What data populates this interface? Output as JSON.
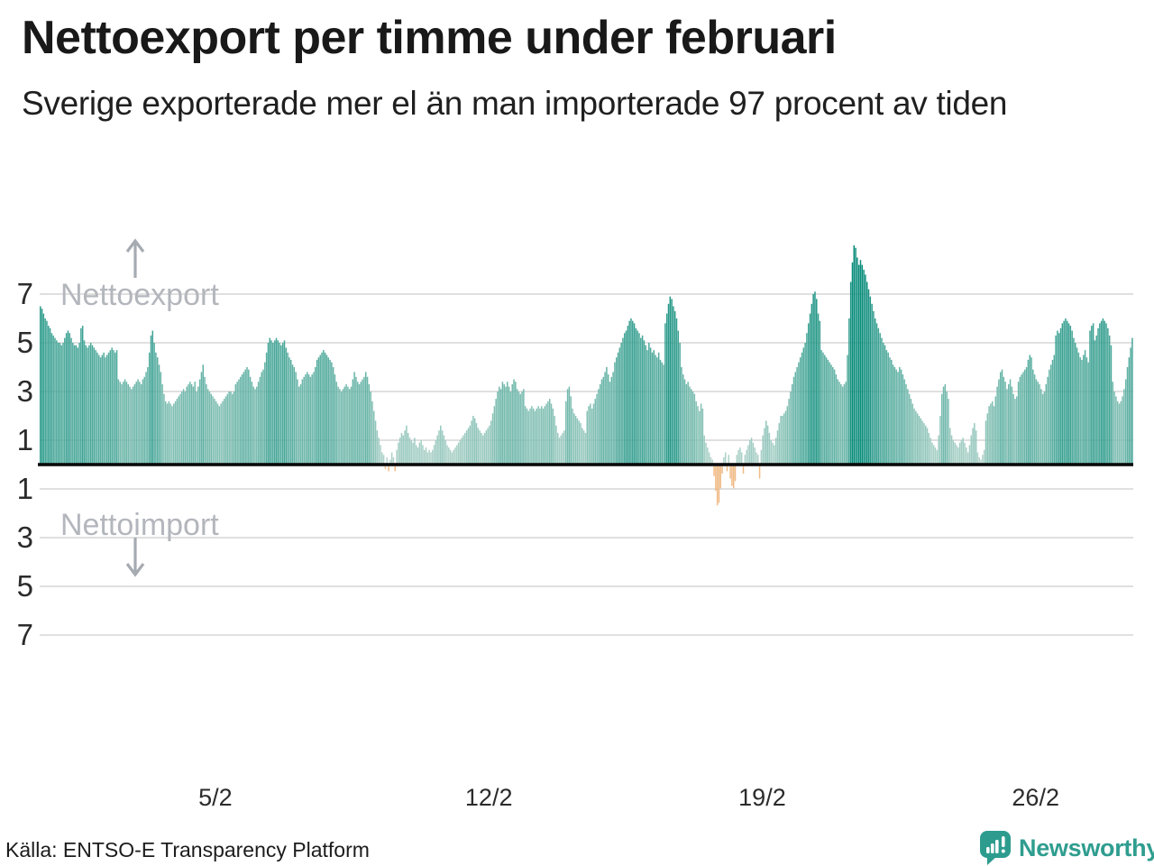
{
  "title": "Nettoexport per timme under februari",
  "subtitle": "Sverige exporterade mer el än man importerade 97 procent av tiden",
  "annotations": {
    "export_label": "Nettoexport",
    "import_label": "Nettoimport"
  },
  "footer": {
    "source": "Källa: ENTSO-E Transparency Platform"
  },
  "brand": {
    "name": "Newsworthy"
  },
  "colors": {
    "positive_low": "#b7d6cd",
    "positive_high": "#0a8c7b",
    "negative": "#f0ba85",
    "gridline": "#d9d9d9",
    "baseline": "#0a0a0a",
    "annotation_gray": "#b3b6bc",
    "arrow_gray": "#a6abb2",
    "brand_teal": "#2d9c8e"
  },
  "chart_data": {
    "type": "bar",
    "title": "Nettoexport per timme under februari",
    "x_unit": "hour",
    "days": 28,
    "hours_per_day": 24,
    "xlabel": "",
    "ylabel": "",
    "ylim": [
      -9,
      9
    ],
    "gridline_values": [
      7,
      5,
      3,
      1,
      -1,
      -3,
      -5,
      -7
    ],
    "y_tick_labels": [
      "7",
      "5",
      "3",
      "1",
      "1",
      "3",
      "5",
      "7"
    ],
    "x_tick_labels": [
      "5/2",
      "12/2",
      "19/2",
      "26/2"
    ],
    "x_tick_days": [
      5,
      12,
      19,
      26
    ],
    "legend": [
      "Nettoexport",
      "Nettoimport"
    ],
    "values": [
      6.5,
      6.4,
      6.2,
      6.0,
      5.9,
      5.7,
      5.6,
      5.4,
      5.3,
      5.2,
      5.1,
      5.0,
      5.0,
      4.9,
      5.0,
      5.2,
      5.4,
      5.5,
      5.4,
      5.2,
      5.0,
      4.9,
      4.9,
      4.8,
      5.0,
      5.6,
      5.7,
      5.1,
      4.9,
      4.8,
      4.9,
      5.0,
      4.9,
      4.8,
      4.7,
      4.6,
      4.5,
      4.4,
      4.5,
      4.6,
      4.4,
      4.5,
      4.6,
      4.7,
      4.8,
      4.7,
      4.6,
      4.7,
      3.5,
      3.4,
      3.3,
      3.4,
      3.5,
      3.4,
      3.3,
      3.2,
      3.1,
      3.2,
      3.3,
      3.4,
      3.5,
      3.4,
      3.3,
      3.5,
      3.6,
      3.8,
      4.0,
      4.6,
      5.3,
      5.5,
      5.0,
      4.6,
      4.4,
      4.1,
      3.8,
      3.3,
      2.9,
      2.6,
      2.5,
      2.6,
      2.5,
      2.4,
      2.5,
      2.6,
      2.7,
      2.8,
      2.9,
      3.0,
      3.1,
      3.0,
      3.2,
      3.3,
      3.4,
      3.3,
      3.2,
      3.4,
      3.0,
      3.2,
      3.5,
      3.8,
      4.1,
      3.6,
      3.3,
      3.1,
      3.0,
      2.9,
      2.8,
      2.7,
      2.6,
      2.5,
      2.4,
      2.5,
      2.6,
      2.7,
      2.8,
      2.9,
      3.0,
      3.0,
      2.9,
      3.0,
      3.3,
      3.4,
      3.5,
      3.6,
      3.7,
      3.8,
      3.9,
      4.0,
      3.9,
      3.6,
      3.4,
      3.2,
      3.1,
      3.2,
      3.4,
      3.6,
      3.8,
      3.9,
      4.2,
      4.6,
      5.0,
      5.2,
      5.1,
      5.0,
      5.1,
      5.2,
      5.1,
      5.0,
      4.9,
      5.0,
      5.1,
      4.8,
      4.6,
      4.4,
      4.3,
      4.1,
      4.0,
      3.8,
      3.5,
      3.2,
      3.3,
      3.5,
      3.6,
      3.7,
      3.8,
      3.7,
      3.6,
      3.7,
      3.8,
      4.0,
      4.3,
      4.4,
      4.5,
      4.6,
      4.7,
      4.6,
      4.5,
      4.4,
      4.3,
      4.2,
      4.0,
      3.7,
      3.4,
      3.2,
      3.1,
      3.0,
      3.1,
      3.2,
      3.3,
      3.2,
      3.1,
      3.2,
      3.5,
      3.8,
      3.6,
      3.4,
      3.3,
      3.4,
      3.5,
      3.6,
      3.8,
      3.6,
      3.3,
      3.0,
      2.6,
      2.2,
      1.8,
      1.4,
      1.1,
      0.8,
      0.5,
      0.4,
      -0.1,
      0.3,
      -0.2,
      0.2,
      0.5,
      0.3,
      -0.2,
      0.6,
      0.9,
      1.1,
      1.3,
      1.2,
      1.4,
      1.6,
      1.3,
      1.1,
      1.0,
      0.9,
      1.1,
      0.8,
      0.7,
      0.9,
      1.0,
      0.8,
      0.6,
      0.7,
      0.5,
      0.6,
      0.5,
      0.6,
      0.8,
      1.0,
      1.2,
      1.4,
      1.6,
      1.4,
      1.2,
      1.0,
      0.8,
      0.7,
      0.6,
      0.5,
      0.6,
      0.7,
      0.8,
      0.9,
      1.0,
      1.1,
      1.2,
      1.3,
      1.4,
      1.5,
      1.6,
      1.8,
      2.0,
      1.9,
      1.7,
      1.5,
      1.4,
      1.3,
      1.2,
      1.3,
      1.4,
      1.5,
      1.6,
      1.8,
      2.1,
      2.4,
      2.7,
      3.0,
      3.2,
      3.1,
      3.4,
      3.3,
      3.2,
      3.4,
      3.2,
      3.0,
      3.3,
      3.5,
      3.4,
      3.1,
      3.0,
      2.9,
      3.0,
      3.1,
      2.4,
      2.3,
      2.2,
      2.3,
      2.4,
      2.3,
      2.2,
      2.3,
      2.4,
      2.3,
      2.4,
      2.3,
      2.4,
      2.5,
      2.6,
      2.7,
      2.5,
      2.3,
      2.0,
      1.6,
      1.3,
      1.1,
      1.2,
      1.3,
      1.4,
      2.6,
      3.1,
      3.2,
      2.8,
      2.3,
      2.1,
      2.0,
      1.9,
      1.8,
      1.7,
      1.5,
      1.4,
      1.3,
      2.2,
      2.4,
      2.5,
      2.3,
      2.5,
      2.7,
      2.9,
      3.1,
      3.3,
      3.5,
      3.6,
      3.8,
      4.0,
      3.7,
      3.4,
      3.6,
      3.8,
      4.2,
      4.4,
      4.6,
      4.8,
      5.0,
      5.2,
      5.4,
      5.5,
      5.7,
      5.9,
      6.0,
      5.9,
      5.8,
      5.6,
      5.5,
      5.4,
      5.2,
      5.3,
      5.1,
      4.9,
      4.7,
      5.0,
      4.8,
      4.6,
      4.7,
      4.5,
      4.4,
      4.6,
      4.3,
      4.2,
      4.1,
      5.8,
      6.2,
      6.6,
      6.9,
      6.8,
      6.5,
      6.3,
      6.0,
      5.5,
      5.0,
      4.0,
      3.7,
      3.5,
      3.3,
      3.4,
      3.2,
      3.1,
      3.0,
      2.9,
      2.6,
      2.4,
      2.2,
      2.5,
      2.3,
      1.2,
      0.9,
      0.7,
      0.5,
      0.3,
      0.2,
      -0.4,
      -1.0,
      -1.6,
      -1.5,
      -0.9,
      -0.3,
      0.3,
      0.5,
      -0.2,
      0.4,
      -0.5,
      -0.8,
      -0.9,
      -0.6,
      0.4,
      0.6,
      0.7,
      0.5,
      -0.3,
      0.4,
      0.6,
      0.8,
      1.0,
      1.1,
      0.9,
      0.7,
      0.5,
      0.4,
      -0.5,
      0.6,
      1.2,
      1.5,
      1.8,
      1.6,
      1.3,
      1.0,
      0.9,
      0.8,
      1.1,
      1.4,
      1.7,
      2.0,
      2.0,
      2.1,
      2.2,
      2.4,
      2.7,
      3.0,
      3.3,
      3.6,
      3.8,
      4.0,
      4.2,
      4.4,
      4.6,
      4.8,
      5.0,
      5.4,
      5.8,
      6.2,
      6.6,
      7.0,
      7.1,
      6.8,
      6.2,
      5.9,
      4.7,
      4.6,
      4.5,
      4.4,
      4.3,
      4.2,
      4.1,
      4.0,
      3.9,
      3.7,
      3.5,
      3.4,
      3.3,
      3.2,
      3.3,
      3.4,
      4.5,
      6.0,
      7.5,
      8.3,
      9.0,
      8.9,
      8.5,
      8.2,
      8.4,
      8.2,
      8.0,
      7.8,
      7.5,
      7.2,
      6.9,
      6.6,
      6.3,
      6.0,
      5.8,
      5.6,
      5.4,
      5.2,
      5.0,
      4.9,
      4.7,
      4.6,
      4.4,
      4.3,
      4.1,
      4.0,
      3.9,
      3.8,
      4.0,
      3.9,
      3.7,
      3.5,
      3.3,
      3.1,
      2.9,
      2.7,
      2.5,
      2.3,
      2.2,
      2.1,
      2.0,
      1.9,
      1.8,
      1.7,
      1.6,
      1.5,
      1.3,
      1.1,
      0.9,
      0.8,
      0.7,
      0.6,
      1.2,
      2.0,
      2.9,
      3.2,
      3.3,
      3.0,
      2.7,
      1.5,
      1.2,
      1.0,
      0.9,
      0.8,
      0.7,
      0.9,
      1.0,
      1.1,
      0.9,
      0.7,
      0.5,
      0.8,
      1.2,
      1.5,
      1.7,
      1.4,
      0.5,
      0.3,
      0.2,
      0.4,
      0.6,
      1.8,
      2.1,
      2.4,
      2.5,
      2.6,
      2.4,
      2.8,
      3.2,
      3.5,
      3.8,
      3.9,
      3.6,
      3.4,
      3.1,
      3.3,
      3.5,
      3.2,
      2.9,
      2.7,
      2.8,
      3.4,
      3.6,
      3.7,
      3.8,
      3.9,
      4.0,
      4.3,
      4.5,
      4.4,
      3.9,
      3.7,
      3.5,
      3.4,
      3.3,
      3.1,
      2.9,
      3.0,
      3.3,
      3.6,
      3.9,
      4.1,
      4.3,
      4.5,
      5.3,
      5.5,
      5.4,
      5.6,
      5.8,
      5.9,
      6.0,
      5.9,
      5.8,
      5.7,
      5.5,
      5.2,
      5.0,
      4.8,
      4.6,
      4.4,
      4.3,
      4.5,
      4.7,
      4.4,
      4.2,
      5.5,
      5.7,
      5.8,
      5.1,
      5.3,
      5.6,
      5.8,
      5.9,
      6.0,
      5.9,
      5.8,
      5.6,
      5.3,
      4.9,
      3.4,
      3.0,
      2.8,
      2.6,
      2.5,
      2.6,
      2.8,
      3.1,
      3.5,
      4.0,
      4.4,
      4.8,
      5.2
    ]
  }
}
